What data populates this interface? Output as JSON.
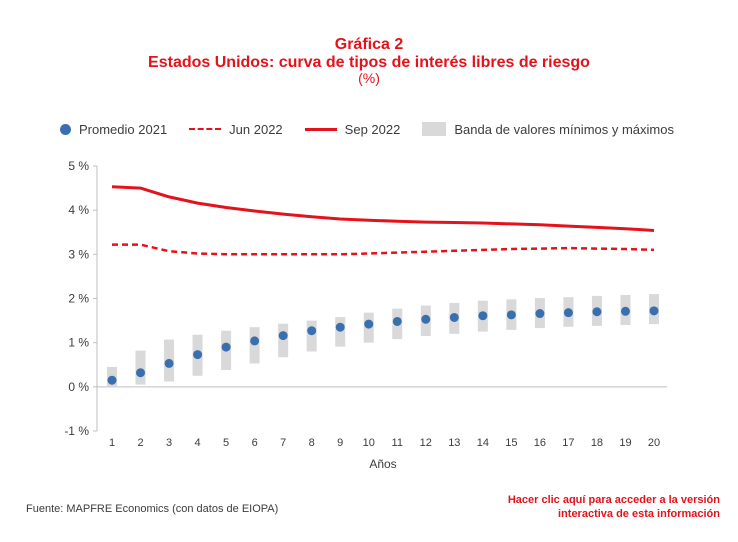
{
  "title_line1": "Gráfica 2",
  "title_line2": "Estados Unidos: curva de tipos de interés libres de riesgo",
  "title_line3": "(%)",
  "source": "Fuente: MAPFRE Economics (con datos de EIOPA)",
  "link_line1": "Hacer clic aquí para acceder a la versión",
  "link_line2": "interactiva de esta información",
  "colors": {
    "red": "#e4121b",
    "blue": "#3a6faf",
    "band": "#d9d9d9",
    "axis": "#bfbfbf",
    "text": "#3c3c3c"
  },
  "chart_data": {
    "type": "line",
    "xlabel": "Años",
    "ylabel": "",
    "x": [
      1,
      2,
      3,
      4,
      5,
      6,
      7,
      8,
      9,
      10,
      11,
      12,
      13,
      14,
      15,
      16,
      17,
      18,
      19,
      20
    ],
    "ylim": [
      -1,
      5
    ],
    "yticks": [
      -1,
      0,
      1,
      2,
      3,
      4,
      5
    ],
    "ytick_labels": [
      "-1 %",
      "0 %",
      "1 %",
      "2 %",
      "3 %",
      "4 %",
      "5 %"
    ],
    "legend_position": "top",
    "grid": false,
    "series": [
      {
        "name": "Promedio 2021",
        "style": "dots",
        "color": "#3a6faf",
        "values": [
          0.15,
          0.32,
          0.53,
          0.73,
          0.9,
          1.04,
          1.16,
          1.27,
          1.35,
          1.42,
          1.48,
          1.53,
          1.57,
          1.61,
          1.63,
          1.66,
          1.68,
          1.7,
          1.71,
          1.72
        ]
      },
      {
        "name": "Jun 2022",
        "style": "dashed",
        "color": "#e4121b",
        "values": [
          3.22,
          3.22,
          3.07,
          3.02,
          3.0,
          3.0,
          3.0,
          3.0,
          3.0,
          3.02,
          3.04,
          3.06,
          3.08,
          3.1,
          3.12,
          3.13,
          3.14,
          3.13,
          3.12,
          3.1
        ]
      },
      {
        "name": "Sep 2022",
        "style": "solid",
        "color": "#e4121b",
        "values": [
          4.53,
          4.5,
          4.3,
          4.16,
          4.06,
          3.98,
          3.91,
          3.85,
          3.8,
          3.77,
          3.75,
          3.73,
          3.72,
          3.71,
          3.69,
          3.67,
          3.64,
          3.61,
          3.58,
          3.54
        ]
      },
      {
        "name": "Banda de valores mínimos y máximos",
        "style": "band",
        "color": "#d9d9d9",
        "low": [
          0.0,
          0.05,
          0.12,
          0.25,
          0.38,
          0.53,
          0.67,
          0.8,
          0.91,
          1.0,
          1.08,
          1.15,
          1.2,
          1.25,
          1.29,
          1.33,
          1.36,
          1.38,
          1.4,
          1.42
        ],
        "high": [
          0.45,
          0.82,
          1.07,
          1.18,
          1.27,
          1.35,
          1.43,
          1.5,
          1.58,
          1.68,
          1.77,
          1.84,
          1.9,
          1.95,
          1.98,
          2.01,
          2.03,
          2.06,
          2.08,
          2.1
        ]
      }
    ]
  }
}
